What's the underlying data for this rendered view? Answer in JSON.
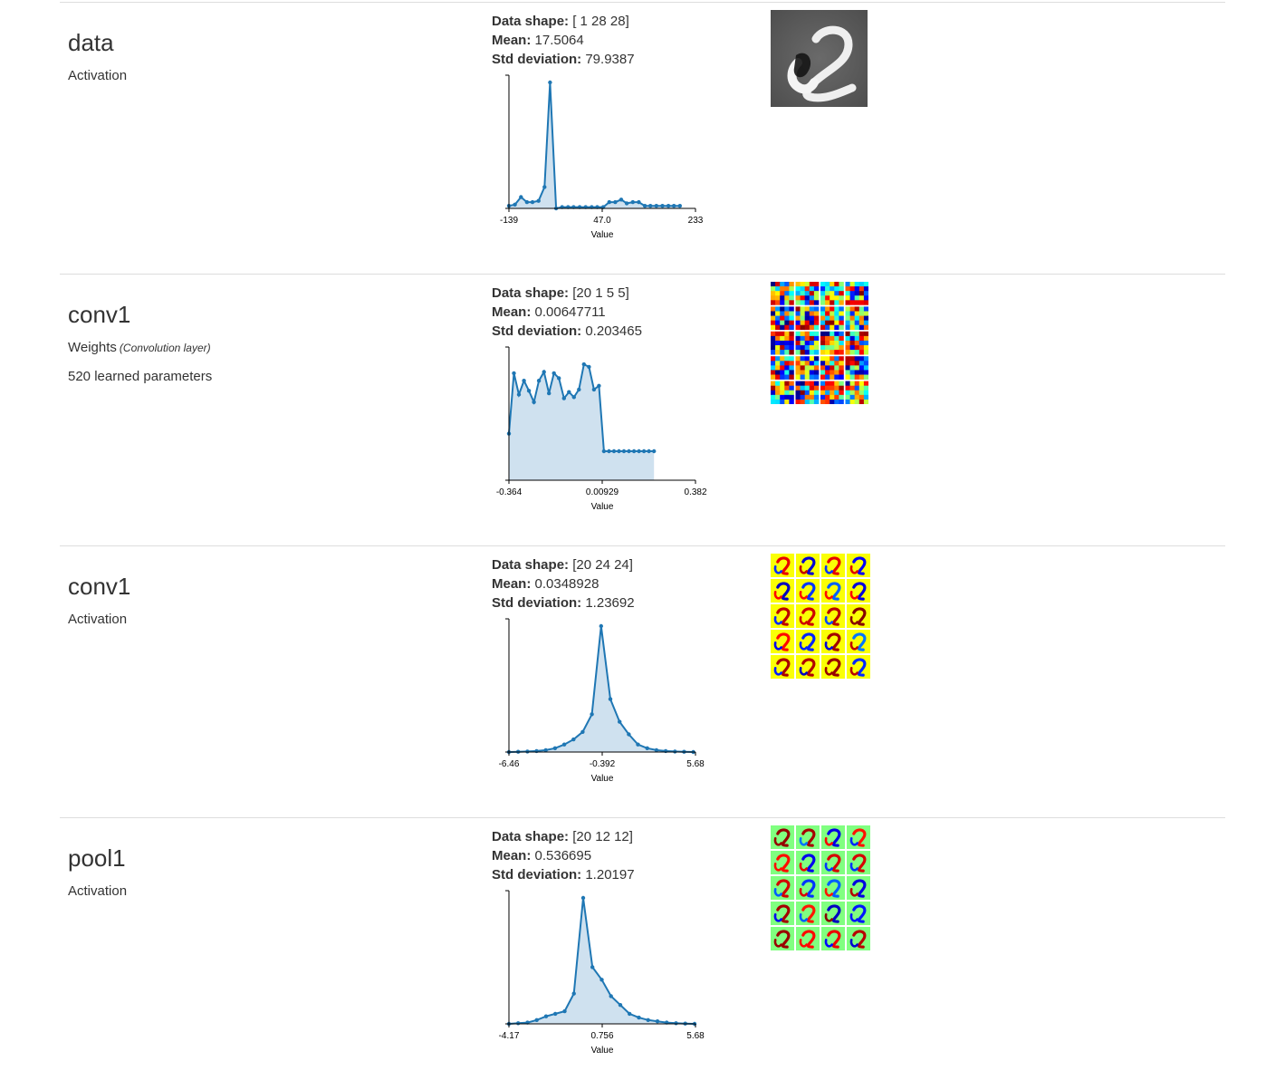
{
  "layers": [
    {
      "name": "data",
      "type": "Activation",
      "type_sub": "",
      "params": "",
      "shape_label": "Data shape:",
      "shape": "[ 1 28 28]",
      "mean_label": "Mean:",
      "mean": "17.5064",
      "std_label": "Std deviation:",
      "std": "79.9387",
      "visualization": "grayscale-digit-image"
    },
    {
      "name": "conv1",
      "type": "Weights",
      "type_sub": "(Convolution layer)",
      "params": "520 learned parameters",
      "shape_label": "Data shape:",
      "shape": "[20 1 5 5]",
      "mean_label": "Mean:",
      "mean": "0.00647711",
      "std_label": "Std deviation:",
      "std": "0.203465",
      "visualization": "filter-weight-grid"
    },
    {
      "name": "conv1",
      "type": "Activation",
      "type_sub": "",
      "params": "",
      "shape_label": "Data shape:",
      "shape": "[20 24 24]",
      "mean_label": "Mean:",
      "mean": "0.0348928",
      "std_label": "Std deviation:",
      "std": "1.23692",
      "visualization": "activation-map-grid"
    },
    {
      "name": "pool1",
      "type": "Activation",
      "type_sub": "",
      "params": "",
      "shape_label": "Data shape:",
      "shape": "[20 12 12]",
      "mean_label": "Mean:",
      "mean": "0.536695",
      "std_label": "Std deviation:",
      "std": "1.20197",
      "visualization": "activation-map-grid"
    }
  ],
  "chart_data": [
    {
      "type": "area",
      "xlabel": "Value",
      "tick_labels": [
        "-139",
        "47.0",
        "233"
      ],
      "xlim": [
        -139,
        233
      ],
      "x": [
        -139,
        -127,
        -115,
        -103,
        -92,
        -80,
        -68,
        -57,
        -45,
        -33,
        -21,
        -10,
        2,
        14,
        26,
        37,
        49,
        61,
        73,
        85,
        96,
        108,
        120,
        132,
        143,
        155,
        167,
        179,
        190,
        202
      ],
      "values": [
        0.02,
        0.03,
        0.09,
        0.05,
        0.05,
        0.06,
        0.17,
        1.0,
        0,
        0.01,
        0.01,
        0.01,
        0.01,
        0.01,
        0.01,
        0.01,
        0.01,
        0.05,
        0.05,
        0.07,
        0.04,
        0.05,
        0.05,
        0.02,
        0.02,
        0.02,
        0.02,
        0.02,
        0.02,
        0.02
      ],
      "color": "#1f77b4",
      "fill": "#cfe1ef"
    },
    {
      "type": "area",
      "xlabel": "Value",
      "tick_labels": [
        "-0.364",
        "0.00929",
        "0.382"
      ],
      "xlim": [
        -0.364,
        0.382
      ],
      "x": [
        -0.364,
        -0.344,
        -0.324,
        -0.304,
        -0.284,
        -0.264,
        -0.244,
        -0.224,
        -0.204,
        -0.184,
        -0.164,
        -0.144,
        -0.124,
        -0.104,
        -0.084,
        -0.064,
        -0.044,
        -0.024,
        -0.004,
        0.016,
        0.036,
        0.056,
        0.076,
        0.096,
        0.116,
        0.136,
        0.156,
        0.176,
        0.196,
        0.216
      ],
      "values": [
        0.37,
        0.85,
        0.68,
        0.79,
        0.71,
        0.62,
        0.79,
        0.86,
        0.69,
        0.85,
        0.81,
        0.65,
        0.7,
        0.66,
        0.72,
        0.92,
        0.9,
        0.72,
        0.75,
        0.23,
        0.23,
        0.23,
        0.23,
        0.23,
        0.23,
        0.23,
        0.23,
        0.23,
        0.23,
        0.23
      ],
      "color": "#1f77b4",
      "fill": "#cfe1ef"
    },
    {
      "type": "area",
      "xlabel": "Value",
      "tick_labels": [
        "-6.46",
        "-0.392",
        "5.68"
      ],
      "xlim": [
        -6.46,
        5.68
      ],
      "x": [
        -6.46,
        -5.86,
        -5.26,
        -4.66,
        -4.06,
        -3.46,
        -2.86,
        -2.26,
        -1.66,
        -1.06,
        -0.46,
        0.14,
        0.74,
        1.34,
        1.94,
        2.54,
        3.14,
        3.74,
        4.34,
        4.94,
        5.54
      ],
      "values": [
        0,
        0.002,
        0.004,
        0.008,
        0.015,
        0.03,
        0.06,
        0.1,
        0.16,
        0.3,
        1.0,
        0.42,
        0.24,
        0.14,
        0.06,
        0.03,
        0.015,
        0.008,
        0.004,
        0.002,
        0
      ],
      "color": "#1f77b4",
      "fill": "#cfe1ef"
    },
    {
      "type": "area",
      "xlabel": "Value",
      "tick_labels": [
        "-4.17",
        "0.756",
        "5.68"
      ],
      "xlim": [
        -4.17,
        5.68
      ],
      "x": [
        -4.17,
        -3.68,
        -3.19,
        -2.7,
        -2.21,
        -1.72,
        -1.23,
        -0.74,
        -0.25,
        0.24,
        0.73,
        1.22,
        1.71,
        2.2,
        2.69,
        3.18,
        3.67,
        4.16,
        4.65,
        5.14,
        5.63
      ],
      "values": [
        0,
        0.005,
        0.01,
        0.03,
        0.06,
        0.08,
        0.1,
        0.24,
        1.0,
        0.45,
        0.35,
        0.22,
        0.15,
        0.08,
        0.05,
        0.03,
        0.02,
        0.01,
        0.005,
        0.002,
        0
      ],
      "color": "#1f77b4",
      "fill": "#cfe1ef"
    }
  ]
}
